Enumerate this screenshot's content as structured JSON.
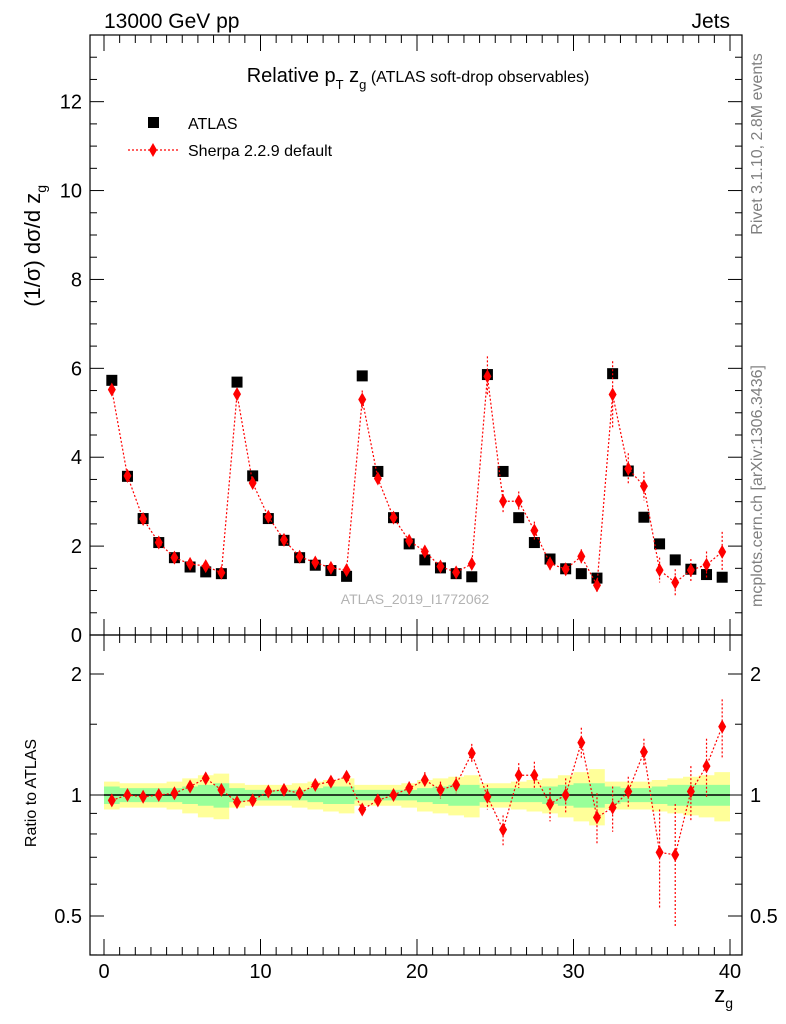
{
  "header": {
    "left": "13000 GeV pp",
    "right": "Jets"
  },
  "side_texts": {
    "rivet": "Rivet 3.1.10,  2.8M events",
    "mcplots": "mcplots.cern.ch [arXiv:1306.3436]"
  },
  "watermark": "ATLAS_2019_I1772062",
  "chart_data": [
    {
      "type": "scatter",
      "title": {
        "main": "Relative p",
        "sub": "T",
        "main2": " z",
        "sub2": "g",
        "tail": " (ATLAS soft-drop observables)"
      },
      "ylabel": {
        "main": "(1/σ) dσ/d z",
        "sub": "g"
      },
      "ylim": [
        0,
        13.5
      ],
      "xlim": [
        -1,
        41
      ],
      "yticks": [
        0,
        2,
        4,
        6,
        8,
        10,
        12
      ],
      "legend_position": "top-left",
      "legend": {
        "atlas": "ATLAS",
        "sherpa": "Sherpa 2.2.9 default"
      },
      "colors": {
        "atlas": "#000000",
        "sherpa": "#ff0000"
      },
      "x": [
        0.5,
        1.5,
        2.5,
        3.5,
        4.5,
        5.5,
        6.5,
        7.5,
        8.5,
        9.5,
        10.5,
        11.5,
        12.5,
        13.5,
        14.5,
        15.5,
        16.5,
        17.5,
        18.5,
        19.5,
        20.5,
        21.5,
        22.5,
        23.5,
        24.5,
        25.5,
        26.5,
        27.5,
        28.5,
        29.5,
        30.5,
        31.5,
        32.5,
        33.5,
        34.5,
        35.5,
        36.5,
        37.5,
        38.5,
        39.5
      ],
      "series": [
        {
          "name": "ATLAS",
          "marker": "square",
          "values": [
            5.73,
            3.57,
            2.62,
            2.08,
            1.74,
            1.53,
            1.42,
            1.38,
            5.69,
            3.58,
            2.62,
            2.13,
            1.74,
            1.57,
            1.45,
            1.32,
            5.83,
            3.68,
            2.64,
            2.05,
            1.69,
            1.51,
            1.38,
            1.31,
            5.86,
            3.68,
            2.64,
            2.08,
            1.71,
            1.49,
            1.38,
            1.28,
            5.88,
            3.69,
            2.65,
            2.05,
            1.69,
            1.48,
            1.36,
            1.3
          ]
        },
        {
          "name": "Sherpa 2.2.9 default",
          "marker": "diamond",
          "values": [
            5.52,
            3.58,
            2.61,
            2.08,
            1.74,
            1.6,
            1.55,
            1.4,
            5.42,
            3.42,
            2.66,
            2.14,
            1.76,
            1.63,
            1.51,
            1.46,
            5.3,
            3.52,
            2.64,
            2.12,
            1.88,
            1.54,
            1.41,
            1.6,
            5.82,
            3.01,
            3.01,
            2.35,
            1.61,
            1.48,
            1.77,
            1.12,
            5.41,
            3.74,
            3.35,
            1.46,
            1.18,
            1.46,
            1.58,
            1.87
          ],
          "errors": [
            0.1,
            0.08,
            0.06,
            0.05,
            0.05,
            0.05,
            0.05,
            0.05,
            0.12,
            0.09,
            0.07,
            0.06,
            0.06,
            0.06,
            0.06,
            0.06,
            0.2,
            0.12,
            0.1,
            0.08,
            0.08,
            0.08,
            0.08,
            0.1,
            0.45,
            0.25,
            0.22,
            0.2,
            0.15,
            0.14,
            0.16,
            0.15,
            0.75,
            0.35,
            0.32,
            0.28,
            0.3,
            0.25,
            0.3,
            0.45
          ]
        }
      ]
    },
    {
      "type": "scatter",
      "xlabel": {
        "main": "z",
        "sub": "g"
      },
      "ylabel": "Ratio to ATLAS",
      "ylim": [
        0.35,
        2.3
      ],
      "yticks": [
        0.5,
        1,
        2
      ],
      "xticks": [
        0,
        10,
        20,
        30,
        40
      ],
      "reference": 1,
      "bands": {
        "inner_color": "#99ff99",
        "outer_color": "#ffff99",
        "inner_halfwidth": [
          0.05,
          0.04,
          0.04,
          0.04,
          0.04,
          0.05,
          0.06,
          0.07,
          0.04,
          0.03,
          0.03,
          0.03,
          0.03,
          0.04,
          0.05,
          0.05,
          0.03,
          0.03,
          0.03,
          0.03,
          0.04,
          0.05,
          0.06,
          0.06,
          0.04,
          0.04,
          0.04,
          0.04,
          0.05,
          0.06,
          0.07,
          0.07,
          0.05,
          0.04,
          0.04,
          0.05,
          0.06,
          0.06,
          0.06,
          0.06
        ],
        "outer_halfwidth": [
          0.08,
          0.07,
          0.07,
          0.07,
          0.08,
          0.1,
          0.12,
          0.13,
          0.07,
          0.06,
          0.06,
          0.06,
          0.07,
          0.08,
          0.09,
          0.1,
          0.06,
          0.06,
          0.06,
          0.07,
          0.09,
          0.1,
          0.11,
          0.12,
          0.07,
          0.07,
          0.08,
          0.09,
          0.1,
          0.12,
          0.14,
          0.16,
          0.08,
          0.08,
          0.08,
          0.09,
          0.1,
          0.11,
          0.12,
          0.14
        ]
      },
      "values": [
        0.97,
        1.0,
        0.99,
        1.0,
        1.01,
        1.05,
        1.1,
        1.03,
        0.96,
        0.97,
        1.02,
        1.03,
        1.01,
        1.06,
        1.08,
        1.11,
        0.92,
        0.97,
        1.0,
        1.04,
        1.09,
        1.03,
        1.06,
        1.27,
        0.99,
        0.82,
        1.12,
        1.12,
        0.95,
        1.0,
        1.35,
        0.88,
        0.93,
        1.02,
        1.28,
        0.72,
        0.71,
        1.02,
        1.18,
        1.48
      ],
      "errors": [
        0.02,
        0.02,
        0.02,
        0.02,
        0.02,
        0.02,
        0.03,
        0.03,
        0.02,
        0.02,
        0.02,
        0.02,
        0.02,
        0.03,
        0.03,
        0.03,
        0.03,
        0.03,
        0.03,
        0.04,
        0.05,
        0.05,
        0.05,
        0.07,
        0.07,
        0.07,
        0.08,
        0.09,
        0.09,
        0.1,
        0.12,
        0.13,
        0.12,
        0.09,
        0.1,
        0.2,
        0.24,
        0.16,
        0.2,
        0.25
      ]
    }
  ]
}
